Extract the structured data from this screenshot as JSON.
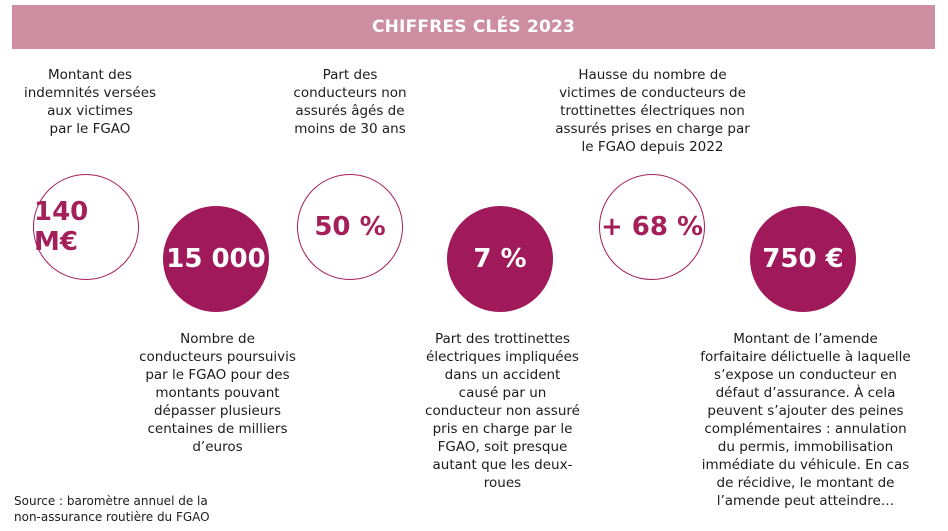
{
  "header": {
    "title": "CHIFFRES CLÉS 2023"
  },
  "colors": {
    "banner": "#cd8ea1",
    "accent": "#a0195a",
    "text": "#1c1c1c"
  },
  "stats": [
    {
      "value": "140 M€",
      "description": "Montant des\nindemnités versées\naux victimes\npar le FGAO"
    },
    {
      "value": "15 000",
      "description": "Nombre de\nconducteurs poursuivis\npar le FGAO pour des\nmontants pouvant\ndépasser plusieurs\ncentaines de milliers\nd’euros"
    },
    {
      "value": "50 %",
      "description": "Part des\nconducteurs non\nassurés âgés de\nmoins de 30 ans"
    },
    {
      "value": "7 %",
      "description": "Part des trottinettes\nélectriques impliquées\ndans un accident\ncausé par un\nconducteur non assuré\npris en charge par le\nFGAO, soit presque\nautant que les deux-\nroues"
    },
    {
      "value": "+ 68 %",
      "description": "Hausse du nombre de\nvictimes de conducteurs de\ntrottinettes électriques non\nassurés prises en charge par\nle FGAO depuis 2022"
    },
    {
      "value": "750 €",
      "description": "Montant de l’amende\nforfaitaire délictuelle à laquelle\ns’expose un conducteur en\ndéfaut d’assurance. À cela\npeuvent s’ajouter des peines\ncomplémentaires : annulation\ndu permis, immobilisation\nimmédiate du véhicule. En cas\nde récidive, le montant de\nl’amende peut atteindre…"
    }
  ],
  "source": "Source : baromètre annuel de la\nnon-assurance routière du FGAO"
}
